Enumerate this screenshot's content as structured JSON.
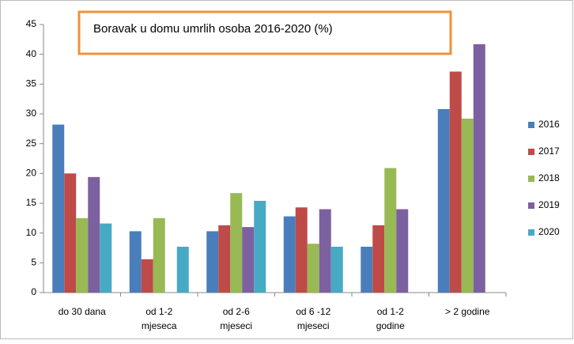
{
  "chart_data": {
    "type": "bar",
    "title": "Boravak u domu umrlih osoba 2016-2020 (%)",
    "categories": [
      [
        "do 30 dana"
      ],
      [
        "od 1-2",
        "mjeseca"
      ],
      [
        "od 2-6",
        "mjeseci"
      ],
      [
        "od 6 -12",
        "mjeseci"
      ],
      [
        "od 1-2",
        "godine"
      ],
      [
        "> 2 godine"
      ]
    ],
    "series": [
      {
        "name": "2016",
        "color": "#4a7ebb",
        "values": [
          28.2,
          10.3,
          10.3,
          12.8,
          7.7,
          30.8
        ]
      },
      {
        "name": "2017",
        "color": "#be4b48",
        "values": [
          20.0,
          5.6,
          11.3,
          14.3,
          11.3,
          37.1
        ]
      },
      {
        "name": "2018",
        "color": "#98b954",
        "values": [
          12.5,
          12.5,
          16.7,
          8.2,
          20.9,
          29.2
        ]
      },
      {
        "name": "2019",
        "color": "#7d60a0",
        "values": [
          19.4,
          0,
          11.0,
          14.0,
          14.0,
          41.7
        ]
      },
      {
        "name": "2020",
        "color": "#46aac5",
        "values": [
          11.6,
          7.7,
          15.4,
          7.7,
          0,
          0
        ]
      }
    ],
    "ylim": [
      0,
      45
    ],
    "yticks": [
      0,
      5,
      10,
      15,
      20,
      25,
      30,
      35,
      40,
      45
    ],
    "grid": false,
    "legend": "right"
  }
}
